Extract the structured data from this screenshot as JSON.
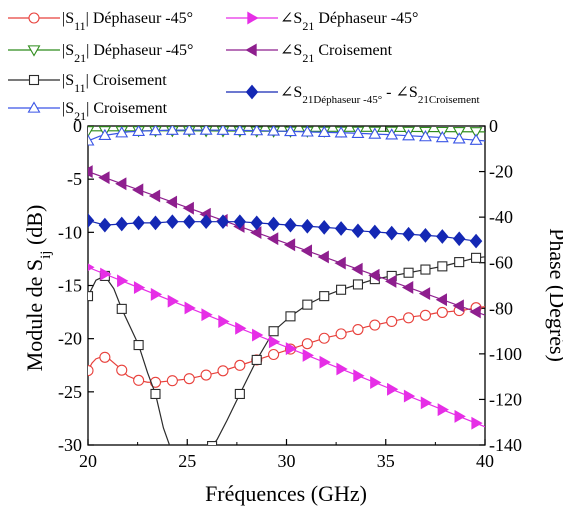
{
  "chart_data": {
    "type": "line",
    "x_axis": {
      "label": "Fréquences (GHz)",
      "range": [
        20,
        40
      ],
      "ticks": [
        20,
        25,
        30,
        35,
        40
      ],
      "tick_labels": [
        "20",
        "25",
        "30",
        "35",
        "40"
      ]
    },
    "y_left_axis": {
      "label_main": "Module de S",
      "label_sub": "ij",
      "label_tail": " (dB)",
      "range": [
        -30,
        0
      ],
      "ticks": [
        0,
        -5,
        -10,
        -15,
        -20,
        -25,
        -30
      ],
      "tick_labels": [
        "0",
        "-5",
        "-10",
        "-15",
        "-20",
        "-25",
        "-30"
      ]
    },
    "y_right_axis": {
      "label": "Phase (Degrés)",
      "range": [
        -140,
        0
      ],
      "ticks": [
        0,
        -20,
        -40,
        -60,
        -80,
        -100,
        -120,
        -140
      ],
      "tick_labels": [
        "0",
        "-20",
        "-40",
        "-60",
        "-80",
        "-100",
        "-120",
        "-140"
      ]
    },
    "legend_layout": "top",
    "series": [
      {
        "key": "s11_dephaseur",
        "legend_parts": [
          {
            "t": "|S"
          },
          {
            "t": "11",
            "sub": true
          },
          {
            "t": "| Déphaseur -45°"
          }
        ],
        "axis": "left",
        "color": "#e8413c",
        "marker": "circle",
        "filled": false,
        "x": [
          20,
          20.2,
          20.4,
          20.7,
          21,
          21.5,
          22,
          22.5,
          23,
          23.5,
          24,
          24.5,
          25,
          25.5,
          26,
          26.5,
          27,
          27.5,
          28,
          28.5,
          29,
          29.5,
          30,
          30.5,
          31,
          31.5,
          32,
          32.5,
          33,
          33.5,
          34,
          34.5,
          35,
          35.5,
          36,
          36.5,
          37,
          37.5,
          38,
          38.5,
          39,
          39.5,
          40
        ],
        "y": [
          -23,
          -22.3,
          -21.9,
          -21.7,
          -21.8,
          -22.6,
          -23.5,
          -23.9,
          -24.1,
          -24.1,
          -24.0,
          -23.9,
          -23.8,
          -23.6,
          -23.4,
          -23.2,
          -22.9,
          -22.6,
          -22.3,
          -22.0,
          -21.7,
          -21.4,
          -21.1,
          -20.8,
          -20.5,
          -20.2,
          -19.9,
          -19.7,
          -19.4,
          -19.2,
          -18.9,
          -18.7,
          -18.5,
          -18.3,
          -18.1,
          -17.9,
          -17.8,
          -17.6,
          -17.5,
          -17.4,
          -17.3,
          -17.1,
          -17.0
        ],
        "marker_x": [
          20,
          20.85,
          21.7,
          22.55,
          23.4,
          24.25,
          25.1,
          25.95,
          26.8,
          27.65,
          28.5,
          29.35,
          30.2,
          31.05,
          31.9,
          32.75,
          33.6,
          34.45,
          35.3,
          36.15,
          37,
          37.85,
          38.7,
          39.55
        ]
      },
      {
        "key": "s21_dephaseur",
        "legend_parts": [
          {
            "t": "|S"
          },
          {
            "t": "21",
            "sub": true
          },
          {
            "t": "| Déphaseur -45°"
          }
        ],
        "axis": "left",
        "color": "#2f8c1c",
        "marker": "triangle-down",
        "filled": false,
        "x": [
          20,
          25,
          30,
          35,
          40
        ],
        "y": [
          -0.45,
          -0.45,
          -0.5,
          -0.5,
          -0.55
        ],
        "marker_x": [
          20,
          20.85,
          21.7,
          22.55,
          23.4,
          24.25,
          25.1,
          25.95,
          26.8,
          27.65,
          28.5,
          29.35,
          30.2,
          31.05,
          31.9,
          32.75,
          33.6,
          34.45,
          35.3,
          36.15,
          37,
          37.85,
          38.7,
          39.55
        ]
      },
      {
        "key": "s11_croisement",
        "legend_parts": [
          {
            "t": "|S"
          },
          {
            "t": "11",
            "sub": true
          },
          {
            "t": "| Croisement"
          }
        ],
        "axis": "left",
        "color": "#2b2b2b",
        "marker": "square",
        "filled": false,
        "x": [
          20,
          20.4,
          20.85,
          21.3,
          21.7,
          22.2,
          22.55,
          23.0,
          23.4,
          23.8,
          24.2,
          24.8,
          25.5,
          26.0,
          26.5,
          27.0,
          27.65,
          28.5,
          29.35,
          30.2,
          31.05,
          31.9,
          32.75,
          33.6,
          34.45,
          35.3,
          36.15,
          37,
          37.85,
          38.7,
          39.55,
          40
        ],
        "y": [
          -16,
          -14.5,
          -14.1,
          -15.3,
          -17.2,
          -19.2,
          -20.6,
          -23.2,
          -25.2,
          -28.4,
          -30.5,
          -31.8,
          -31.5,
          -30.7,
          -29.5,
          -27.7,
          -25.2,
          -22.0,
          -19.3,
          -17.9,
          -16.8,
          -16.0,
          -15.4,
          -14.9,
          -14.4,
          -14.1,
          -13.8,
          -13.5,
          -13.2,
          -12.8,
          -12.4,
          -12.3
        ],
        "marker_x": [
          20,
          20.85,
          21.7,
          22.55,
          23.4,
          26.25,
          27.65,
          28.5,
          29.35,
          30.2,
          31.05,
          31.9,
          32.75,
          33.6,
          34.45,
          35.3,
          36.15,
          37,
          37.85,
          38.7,
          39.55
        ]
      },
      {
        "key": "s21_croisement",
        "legend_parts": [
          {
            "t": "|S"
          },
          {
            "t": "21",
            "sub": true
          },
          {
            "t": "| Croisement"
          }
        ],
        "axis": "left",
        "color": "#3a55e6",
        "marker": "triangle-up",
        "filled": false,
        "x": [
          20,
          20.6,
          21.3,
          22.0,
          23,
          24,
          25,
          26,
          27,
          28,
          29,
          30,
          31,
          32,
          33,
          34,
          35,
          36,
          37,
          38,
          39,
          40
        ],
        "y": [
          -1.4,
          -0.95,
          -0.75,
          -0.55,
          -0.45,
          -0.4,
          -0.38,
          -0.38,
          -0.4,
          -0.42,
          -0.45,
          -0.5,
          -0.55,
          -0.6,
          -0.65,
          -0.72,
          -0.8,
          -0.9,
          -1.0,
          -1.1,
          -1.25,
          -1.4
        ],
        "marker_x": [
          20,
          20.85,
          21.7,
          22.55,
          23.4,
          24.25,
          25.1,
          25.95,
          26.8,
          27.65,
          28.5,
          29.35,
          30.2,
          31.05,
          31.9,
          32.75,
          33.6,
          34.45,
          35.3,
          36.15,
          37,
          37.85,
          38.7,
          39.55
        ]
      },
      {
        "key": "ang_s21_dephaseur",
        "legend_parts": [
          {
            "t": "∠S"
          },
          {
            "t": "21",
            "sub": true
          },
          {
            "t": " Déphaseur -45°"
          }
        ],
        "axis": "right",
        "color": "#e62ee6",
        "marker": "triangle-right",
        "filled": true,
        "x": [
          20,
          40
        ],
        "y": [
          -62,
          -132
        ],
        "marker_x": [
          20,
          20.85,
          21.7,
          22.55,
          23.4,
          24.25,
          25.1,
          25.95,
          26.8,
          27.65,
          28.5,
          29.35,
          30.2,
          31.05,
          31.9,
          32.75,
          33.6,
          34.45,
          35.3,
          36.15,
          37,
          37.85,
          38.7,
          39.55
        ]
      },
      {
        "key": "ang_s21_croisement",
        "legend_parts": [
          {
            "t": "∠S"
          },
          {
            "t": "21",
            "sub": true
          },
          {
            "t": " Croisement"
          }
        ],
        "axis": "right",
        "color": "#8e1f8e",
        "marker": "triangle-left",
        "filled": true,
        "x": [
          20,
          40
        ],
        "y": [
          -20,
          -83
        ],
        "marker_x": [
          20,
          20.85,
          21.7,
          22.55,
          23.4,
          24.25,
          25.1,
          25.95,
          26.8,
          27.65,
          28.5,
          29.35,
          30.2,
          31.05,
          31.9,
          32.75,
          33.6,
          34.45,
          35.3,
          36.15,
          37,
          37.85,
          38.7,
          39.55
        ]
      },
      {
        "key": "ang_difference",
        "legend_parts": [
          {
            "t": "∠S"
          },
          {
            "t": "21Déphaseur -45°",
            "sub": true
          },
          {
            "t": " - ∠S"
          },
          {
            "t": "21Croisement",
            "sub": true
          }
        ],
        "axis": "right",
        "color": "#1428b4",
        "marker": "diamond",
        "filled": true,
        "x": [
          20,
          20.85,
          21.7,
          22.55,
          23.4,
          24.25,
          25.1,
          25.95,
          26.8,
          27.65,
          28.5,
          29.35,
          30.2,
          31.05,
          31.9,
          32.75,
          33.6,
          34.45,
          35.3,
          36.15,
          37,
          37.85,
          38.7,
          39.55
        ],
        "y": [
          -41.5,
          -43.5,
          -43,
          -42.5,
          -42.5,
          -42,
          -42,
          -42,
          -42,
          -42,
          -42.5,
          -43,
          -43.5,
          -44,
          -44.5,
          -45,
          -46,
          -46.5,
          -47,
          -47.5,
          -48,
          -48.5,
          -49.5,
          -50.5
        ],
        "marker_x": [
          20,
          20.85,
          21.7,
          22.55,
          23.4,
          24.25,
          25.1,
          25.95,
          26.8,
          27.65,
          28.5,
          29.35,
          30.2,
          31.05,
          31.9,
          32.75,
          33.6,
          34.45,
          35.3,
          36.15,
          37,
          37.85,
          38.7,
          39.55
        ]
      }
    ]
  }
}
